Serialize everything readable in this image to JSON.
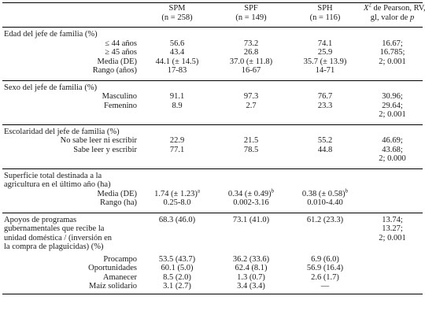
{
  "header": {
    "col1": "SPM",
    "col1_n": "(n = 258)",
    "col2": "SPF",
    "col2_n": "(n = 149)",
    "col3": "SPH",
    "col3_n": "(n = 116)",
    "col4_line1_pre": "X",
    "col4_line1_sup": "2",
    "col4_line1_post": " de Pearson, RV,",
    "col4_line2_pre": "gl, valor de ",
    "col4_line2_p": "p"
  },
  "sections": {
    "edad": {
      "title": "Edad del jefe de familia (%)",
      "r1": {
        "label": "≤ 44 años",
        "a": "56.6",
        "b": "73.2",
        "c": "74.1",
        "x": "16.67;"
      },
      "r2": {
        "label": "≥ 45 años",
        "a": "43.4",
        "b": "26.8",
        "c": "25.9",
        "x": "16.785;"
      },
      "r3": {
        "label": "Media (DE)",
        "a": "44.1 (± 14.5)",
        "b": "37.0 (± 11.8)",
        "c": "35.7 (± 13.9)",
        "x": "2; 0.001"
      },
      "r4": {
        "label": "Rango (años)",
        "a": "17-83",
        "b": "16-67",
        "c": "14-71"
      }
    },
    "sexo": {
      "title": "Sexo del jefe de familia (%)",
      "r1": {
        "label": "Masculino",
        "a": "91.1",
        "b": "97.3",
        "c": "76.7",
        "x": "30.96;"
      },
      "r2": {
        "label": "Femenino",
        "a": "8.9",
        "b": "2.7",
        "c": "23.3",
        "x": "29.64;"
      },
      "r3": {
        "x": "2; 0.001"
      }
    },
    "escol": {
      "title": "Escolaridad del jefe de familia (%)",
      "r1": {
        "label": "No sabe leer ni escribir",
        "a": "22.9",
        "b": "21.5",
        "c": "55.2",
        "x": "46.69;"
      },
      "r2": {
        "label": "Sabe leer y escribir",
        "a": "77.1",
        "b": "78.5",
        "c": "44.8",
        "x": "43.68;"
      },
      "r3": {
        "x": "2; 0.000"
      }
    },
    "superficie": {
      "title1": "Superficie total destinada a la",
      "title2": "agricultura en el último año (ha)",
      "r1": {
        "label": "Media (DE)",
        "a": "1.74 (± 1.23)",
        "a_sup": "a",
        "b": "0.34 (± 0.49)",
        "b_sup": "b",
        "c": "0.38 (± 0.58)",
        "c_sup": "b"
      },
      "r2": {
        "label": "Rango (ha)",
        "a": "0.25-8.0",
        "b": "0.002-3.16",
        "c": "0.010-4.40"
      }
    },
    "apoyos": {
      "t1": "Apoyos de programas",
      "t2": "gubernamentales que recibe la",
      "t3": "unidad doméstica / (inversión en",
      "t4": "la compra de plaguicidas) (%)",
      "a": "68.3 (46.0)",
      "b": "73.1 (41.0)",
      "c": "61.2 (23.3)",
      "x1": "13.74;",
      "x2": "13.27;",
      "x3": "2; 0.001",
      "r1": {
        "label": "Procampo",
        "a": "53.5 (43.7)",
        "b": "36.2 (33.6)",
        "c": "6.9 (6.0)"
      },
      "r2": {
        "label": "Oportunidades",
        "a": "60.1 (5.0)",
        "b": "62.4 (8.1)",
        "c": "56.9 (16.4)"
      },
      "r3": {
        "label": "Amanecer",
        "a": "8.5 (2.0)",
        "b": "1.3 (0.7)",
        "c": "2.6 (1.7)"
      },
      "r4": {
        "label": "Maíz solidario",
        "a": "3.1 (2.7)",
        "b": "3.4 (3.4)",
        "c": "—"
      }
    }
  }
}
